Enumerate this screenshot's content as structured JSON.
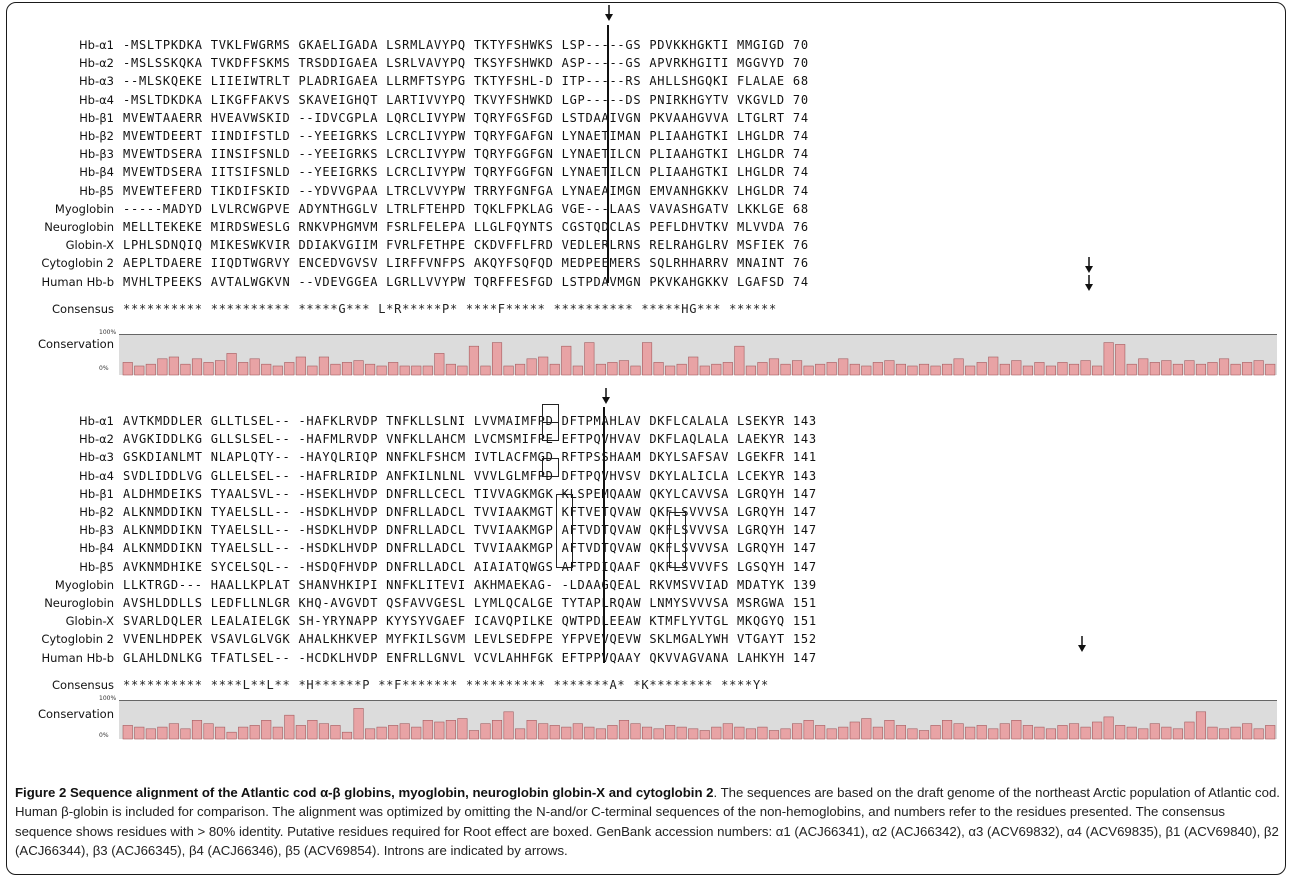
{
  "figure": {
    "block1": {
      "rows": [
        {
          "name": "Hb-α1",
          "seq": "-MSLTPKDKA TVKLFWGRMS GKAELIGADA LSRMLAVYPQ TKTYFSHWKS LSP-----GS PDVKKHGKTI MMGIGD 70"
        },
        {
          "name": "Hb-α2",
          "seq": "-MSLSSKQKA TVKDFFSKMS TRSDDIGAEA LSRLVAVYPQ TKSYFSHWKD ASP-----GS APVRKHGITI MGGVYD 70"
        },
        {
          "name": "Hb-α3",
          "seq": "--MLSKQEKE LIIEIWTRLT PLADRIGAEA LLRMFTSYPG TKTYFSHL-D ITP-----RS AHLLSHGQKI FLALAE 68"
        },
        {
          "name": "Hb-α4",
          "seq": "-MSLTDKDKA LIKGFFAKVS SKAVEIGHQT LARTIVVYPQ TKVYFSHWKD LGP-----DS PNIRKHGYTV VKGVLD 70"
        },
        {
          "name": "Hb-β1",
          "seq": "MVEWTAAERR HVEAVWSKID --IDVCGPLA LQRCLIVYPW TQRYFGSFGD LSTDAAIVGN PKVAAHGVVA LTGLRT 74"
        },
        {
          "name": "Hb-β2",
          "seq": "MVEWTDEERT IINDIFSTLD --YEEIGRKS LCRCLIVYPW TQRYFGAFGN LYNAETIMAN PLIAAHGTKI LHGLDR 74"
        },
        {
          "name": "Hb-β3",
          "seq": "MVEWTDSERA IINSIFSNLD --YEEIGRKS LCRCLIVYPW TQRYFGGFGN LYNAETILCN PLIAAHGTKI LHGLDR 74"
        },
        {
          "name": "Hb-β4",
          "seq": "MVEWTDSERA IITSIFSNLD --YEEIGRKS LCRCLIVYPW TQRYFGGFGN LYNAETILCN PLIAAHGTKI LHGLDR 74"
        },
        {
          "name": "Hb-β5",
          "seq": "MVEWTEFERD TIKDIFSKID --YDVVGPAA LTRCLVVYPW TRRYFGNFGA LYNAEAIMGN EMVANHGKKV LHGLDR 74"
        },
        {
          "name": "Myoglobin",
          "seq": "-----MADYD LVLRCWGPVE ADYNTHGGLV LTRLFTEHPD TQKLFPKLAG VGE---LAAS VAVASHGATV LKKLGE 68"
        },
        {
          "name": "Neuroglobin",
          "seq": "MELLTEKEKE MIRDSWESLG RNKVPHGMVM FSRLFELEPA LLGLFQYNTS CGSTQDCLAS PEFLDHVTKV MLVVDA 76"
        },
        {
          "name": "Globin-X",
          "seq": "LPHLSDNQIQ MIKESWKVIR DDIAKVGIIM FVRLFETHPE CKDVFFLFRD VEDLERLRNS RELRAHGLRV MSFIEK 76"
        },
        {
          "name": "Cytoglobin 2",
          "seq": "AEPLTDAERE IIQDTWGRVY ENCEDVGVSV LIRFFVNFPS AKQYFSQFQD MEDPEEMERS SQLRHHARRV MNAINT 76"
        },
        {
          "name": "Human Hb-b",
          "seq": "MVHLTPEEKS AVTALWGKVN --VDEVGGEA LGRLLVVYPW TQRFFESFGD LSTPDAVMGN PKVKAHGKKV LGAFSD 74"
        }
      ],
      "consensus_label": "Consensus",
      "consensus": "********** ********** *****G*** L*R*****P* ****F***** ********** *****HG*** ******",
      "conservation_label": "Conservation",
      "pct_top": "100%",
      "pct_bottom": "0%",
      "conservation": [
        0.35,
        0.25,
        0.3,
        0.45,
        0.5,
        0.3,
        0.45,
        0.35,
        0.4,
        0.6,
        0.35,
        0.45,
        0.3,
        0.25,
        0.35,
        0.5,
        0.25,
        0.5,
        0.3,
        0.35,
        0.4,
        0.3,
        0.25,
        0.35,
        0.25,
        0.25,
        0.25,
        0.6,
        0.3,
        0.25,
        0.8,
        0.25,
        0.9,
        0.25,
        0.3,
        0.45,
        0.5,
        0.3,
        0.8,
        0.25,
        0.9,
        0.3,
        0.35,
        0.4,
        0.25,
        0.9,
        0.35,
        0.25,
        0.3,
        0.5,
        0.25,
        0.3,
        0.35,
        0.8,
        0.25,
        0.35,
        0.45,
        0.3,
        0.4,
        0.25,
        0.3,
        0.35,
        0.45,
        0.3,
        0.25,
        0.35,
        0.4,
        0.3,
        0.25,
        0.3,
        0.25,
        0.3,
        0.45,
        0.25,
        0.35,
        0.5,
        0.3,
        0.4,
        0.25,
        0.35,
        0.25,
        0.35,
        0.3,
        0.4,
        0.25,
        0.9,
        0.85,
        0.3,
        0.45,
        0.35,
        0.4,
        0.3,
        0.4,
        0.3,
        0.35,
        0.45,
        0.3,
        0.35,
        0.4,
        0.3
      ]
    },
    "block2": {
      "rows": [
        {
          "name": "Hb-α1",
          "seq": "AVTKMDDLER GLLTLSEL-- -HAFKLRVDP TNFKLLSLNI LVVMAIMFPD DFTPMAHLAV DKFLCALALA LSEKYR 143"
        },
        {
          "name": "Hb-α2",
          "seq": "AVGKIDDLKG GLLSLSEL-- -HAFMLRVDP VNFKLLAHCM LVCMSMIFPE EFTPQVHVAV DKFLAQLALA LAEKYR 143"
        },
        {
          "name": "Hb-α3",
          "seq": "GSKDIANLMT NLAPLQTY-- -HAYQLRIQP NNFKLFSHCM IVTLACFMGD RFTPSSHAAM DKYLSAFSAV LGEKFR 141"
        },
        {
          "name": "Hb-α4",
          "seq": "SVDLIDDLVG GLLELSEL-- -HAFRLRIDP ANFKILNLNL VVVLGLMFPD DFTPQVHVSV DKYLALICLA LCEKYR 143"
        },
        {
          "name": "Hb-β1",
          "seq": "ALDHMDEIKS TYAALSVL-- -HSEKLHVDP DNFRLLCECL TIVVAGKMGK KLSPEMQAAW QKYLCAVVSA LGRQYH 147"
        },
        {
          "name": "Hb-β2",
          "seq": "ALKNMDDIKN TYAELSLL-- -HSDKLHVDP DNFRLLADCL TVVIAAKMGT KFTVETQVAW QKFLSVVVSA LGRQYH 147"
        },
        {
          "name": "Hb-β3",
          "seq": "ALKNMDDIKN TYAELSLL-- -HSDKLHVDP DNFRLLADCL TVVIAAKMGP AFTVDTQVAW QKFLSVVVSA LGRQYH 147"
        },
        {
          "name": "Hb-β4",
          "seq": "ALKNMDDIKN TYAELSLL-- -HSDKLHVDP DNFRLLADCL TVVIAAKMGP AFTVDTQVAW QKFLSVVVSA LGRQYH 147"
        },
        {
          "name": "Hb-β5",
          "seq": "AVKNMDHIKE SYCELSQL-- -HSDQFHVDP DNFRLLADCL AIAIATQWGS AFTPDIQAAF QKFLSVVVFS LGSQYH 147"
        },
        {
          "name": "Myoglobin",
          "seq": "LLKTRGD--- HAALLKPLAT SHANVHKIPI NNFKLITEVI AKHMAEKAG- -LDAAGQEAL RKVMSVVIAD MDATYK 139"
        },
        {
          "name": "Neuroglobin",
          "seq": "AVSHLDDLLS LEDFLLNLGR KHQ-AVGVDT QSFAVVGESL LYMLQCALGE TYTAPLRQAW LNMYSVVVSA MSRGWA 151"
        },
        {
          "name": "Globin-X",
          "seq": "SVARLDQLER LEALAIELGK SH-YRYNAPP KYYSYVGAEF ICAVQPILKE QWTPDLEEAW KTMFLYVTGL MKQGYQ 151"
        },
        {
          "name": "Cytoglobin 2",
          "seq": "VVENLHDPEK VSAVLGLVGK AHALKHKVEP MYFKILSGVM LEVLSEDFPE YFPVEVQEVW SKLMGALYWH VTGAYT 152"
        },
        {
          "name": "Human Hb-b",
          "seq": "GLAHLDNLKG TFATLSEL-- -HCDKLHVDP ENFRLLGNVL VCVLAHHFGK EFTPPVQAAY QKVVAGVANA LAHKYH 147"
        }
      ],
      "consensus_label": "Consensus",
      "consensus": "********** ****L**L** *H******P **F******* ********** *******A* *K******** ****Y*",
      "conservation_label": "Conservation",
      "pct_top": "100%",
      "pct_bottom": "0%",
      "conservation": [
        0.4,
        0.35,
        0.3,
        0.35,
        0.45,
        0.3,
        0.55,
        0.45,
        0.35,
        0.2,
        0.35,
        0.4,
        0.55,
        0.35,
        0.7,
        0.4,
        0.55,
        0.45,
        0.4,
        0.2,
        0.9,
        0.3,
        0.35,
        0.4,
        0.45,
        0.35,
        0.55,
        0.5,
        0.55,
        0.6,
        0.25,
        0.45,
        0.55,
        0.8,
        0.3,
        0.55,
        0.45,
        0.4,
        0.35,
        0.45,
        0.35,
        0.3,
        0.4,
        0.55,
        0.45,
        0.35,
        0.3,
        0.4,
        0.35,
        0.3,
        0.25,
        0.35,
        0.45,
        0.35,
        0.3,
        0.35,
        0.25,
        0.3,
        0.45,
        0.55,
        0.4,
        0.3,
        0.35,
        0.5,
        0.6,
        0.35,
        0.55,
        0.4,
        0.3,
        0.25,
        0.4,
        0.55,
        0.45,
        0.35,
        0.4,
        0.3,
        0.45,
        0.55,
        0.4,
        0.35,
        0.3,
        0.4,
        0.45,
        0.35,
        0.5,
        0.65,
        0.4,
        0.35,
        0.3,
        0.45,
        0.35,
        0.3,
        0.5,
        0.8,
        0.35,
        0.3,
        0.35,
        0.45,
        0.3,
        0.4
      ]
    },
    "accent_color": "#e8a3a5",
    "band_color": "#dcdcdc"
  },
  "caption": {
    "title": "Figure 2 Sequence alignment of the Atlantic cod α-β globins, myoglobin, neuroglobin globin-X and cytoglobin 2",
    "body": ". The sequences are based on the draft genome of the northeast Arctic population of Atlantic cod. Human β-globin is included for comparison. The alignment was optimized by omitting the N-and/or C-terminal sequences of the non-hemoglobins, and numbers refer to the residues presented. The consensus sequence shows residues with > 80% identity. Putative residues required for Root effect are boxed. GenBank accession numbers: α1 (ACJ66341), α2 (ACJ66342), α3 (ACV69832), α4 (ACV69835), β1 (ACV69840), β2 (ACJ66344), β3 (ACJ66345), β4 (ACJ66346), β5 (ACV69854). Introns are indicated by arrows."
  }
}
